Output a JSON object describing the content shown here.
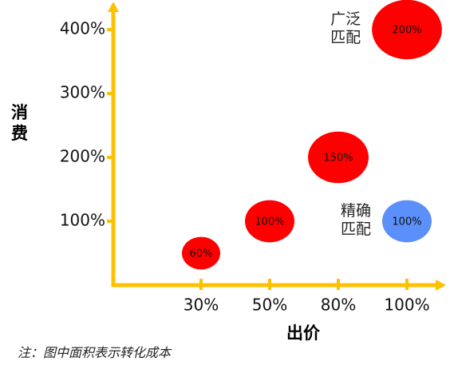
{
  "chart_data": {
    "type": "bubble",
    "x_label": "出价",
    "y_label": "消费",
    "note": "注：图中面积表示转化成本",
    "categories": [
      "30%",
      "50%",
      "80%",
      "100%"
    ],
    "ylim": [
      0,
      440
    ],
    "yticks": [
      {
        "value": 100,
        "label": "100%"
      },
      {
        "value": 200,
        "label": "200%"
      },
      {
        "value": 300,
        "label": "300%"
      },
      {
        "value": 400,
        "label": "400%"
      }
    ],
    "axis_color": "#FFC000",
    "series": [
      {
        "name": "广泛匹配",
        "color": "#FF0000",
        "values": [
          50,
          100,
          200,
          400
        ],
        "sizes": [
          60,
          100,
          150,
          200
        ],
        "value_labels": [
          "60%",
          "100%",
          "150%",
          "200%"
        ]
      },
      {
        "name": "精确匹配",
        "color": "#5B8FF9",
        "values": [
          null,
          null,
          null,
          100
        ],
        "sizes": [
          null,
          null,
          null,
          100
        ],
        "value_labels": [
          null,
          null,
          null,
          "100%"
        ]
      }
    ]
  }
}
